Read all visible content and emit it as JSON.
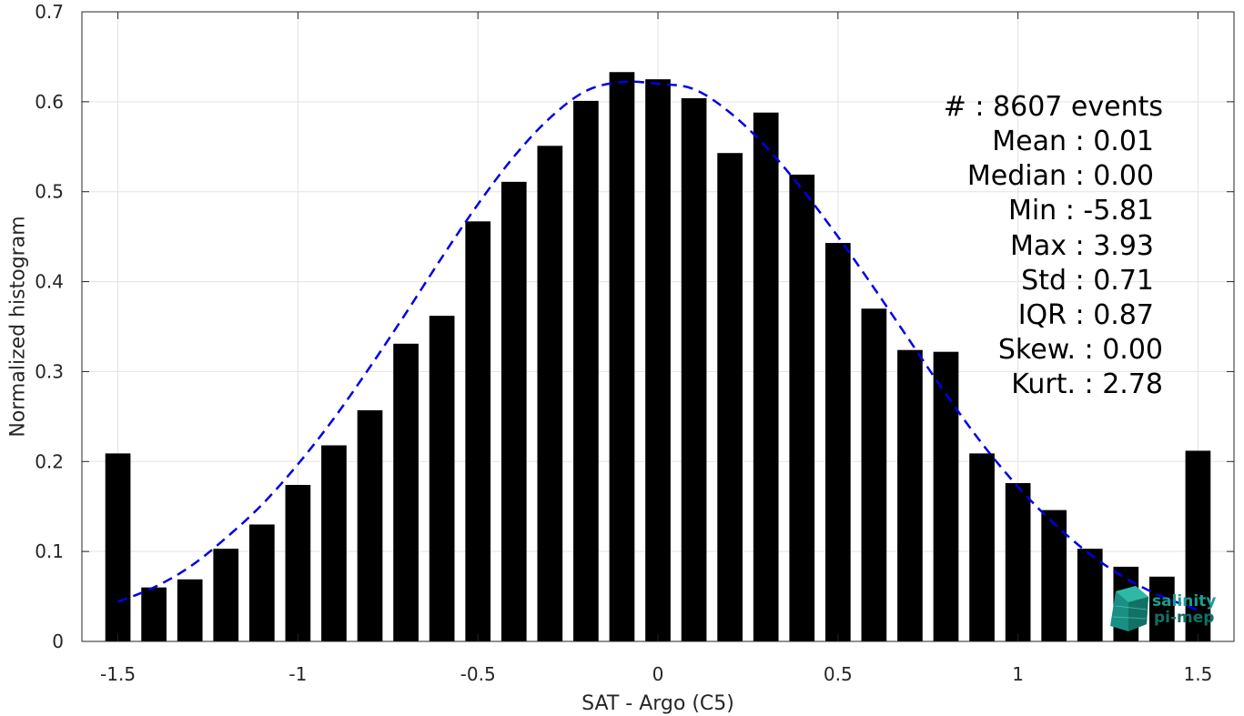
{
  "chart_data": {
    "type": "bar",
    "xlabel": "SAT - Argo (C5)",
    "ylabel": "Normalized histogram",
    "xlim": [
      -1.6,
      1.6
    ],
    "ylim": [
      0,
      0.7
    ],
    "grid": true,
    "x_ticks": [
      "-1.5",
      "-1",
      "-0.5",
      "0",
      "0.5",
      "1",
      "1.5"
    ],
    "x_tick_values": [
      -1.5,
      -1,
      -0.5,
      0,
      0.5,
      1,
      1.5
    ],
    "y_ticks": [
      "0",
      "0.1",
      "0.2",
      "0.3",
      "0.4",
      "0.5",
      "0.6",
      "0.7"
    ],
    "y_tick_values": [
      0,
      0.1,
      0.2,
      0.3,
      0.4,
      0.5,
      0.6,
      0.7
    ],
    "bar_width": 0.07,
    "bars": {
      "x": [
        -1.5,
        -1.4,
        -1.3,
        -1.2,
        -1.1,
        -1.0,
        -0.9,
        -0.8,
        -0.7,
        -0.6,
        -0.5,
        -0.4,
        -0.3,
        -0.2,
        -0.1,
        0.0,
        0.1,
        0.2,
        0.3,
        0.4,
        0.5,
        0.6,
        0.7,
        0.8,
        0.9,
        1.0,
        1.1,
        1.2,
        1.3,
        1.4,
        1.5
      ],
      "values": [
        0.209,
        0.06,
        0.069,
        0.103,
        0.13,
        0.174,
        0.218,
        0.257,
        0.331,
        0.362,
        0.467,
        0.511,
        0.551,
        0.601,
        0.633,
        0.625,
        0.604,
        0.543,
        0.588,
        0.519,
        0.443,
        0.37,
        0.324,
        0.322,
        0.209,
        0.176,
        0.146,
        0.103,
        0.083,
        0.072,
        0.212
      ],
      "color": "#000000"
    },
    "fit_curve": {
      "style": "dashed",
      "color": "#0000e6",
      "x": [
        -1.5,
        -1.4,
        -1.3,
        -1.2,
        -1.1,
        -1.0,
        -0.9,
        -0.8,
        -0.7,
        -0.6,
        -0.5,
        -0.4,
        -0.3,
        -0.2,
        -0.1,
        0.0,
        0.1,
        0.2,
        0.3,
        0.4,
        0.5,
        0.6,
        0.7,
        0.8,
        0.9,
        1.0,
        1.1,
        1.2,
        1.3,
        1.4,
        1.5
      ],
      "values": [
        0.044,
        0.06,
        0.083,
        0.115,
        0.152,
        0.197,
        0.248,
        0.305,
        0.365,
        0.427,
        0.486,
        0.539,
        0.582,
        0.612,
        0.622,
        0.62,
        0.614,
        0.588,
        0.55,
        0.503,
        0.45,
        0.393,
        0.334,
        0.275,
        0.22,
        0.172,
        0.131,
        0.097,
        0.07,
        0.05,
        0.035
      ]
    },
    "annotations": [
      "#  : 8607 events",
      "Mean : 0.01",
      "Median : 0.00",
      "Min : -5.81",
      "Max : 3.93",
      "Std : 0.71",
      "IQR : 0.87",
      "Skew. : 0.00",
      "Kurt. : 2.78"
    ]
  },
  "logo": {
    "line1": "salinity",
    "line2": "pi-mep",
    "color": "#1a9e8f"
  }
}
